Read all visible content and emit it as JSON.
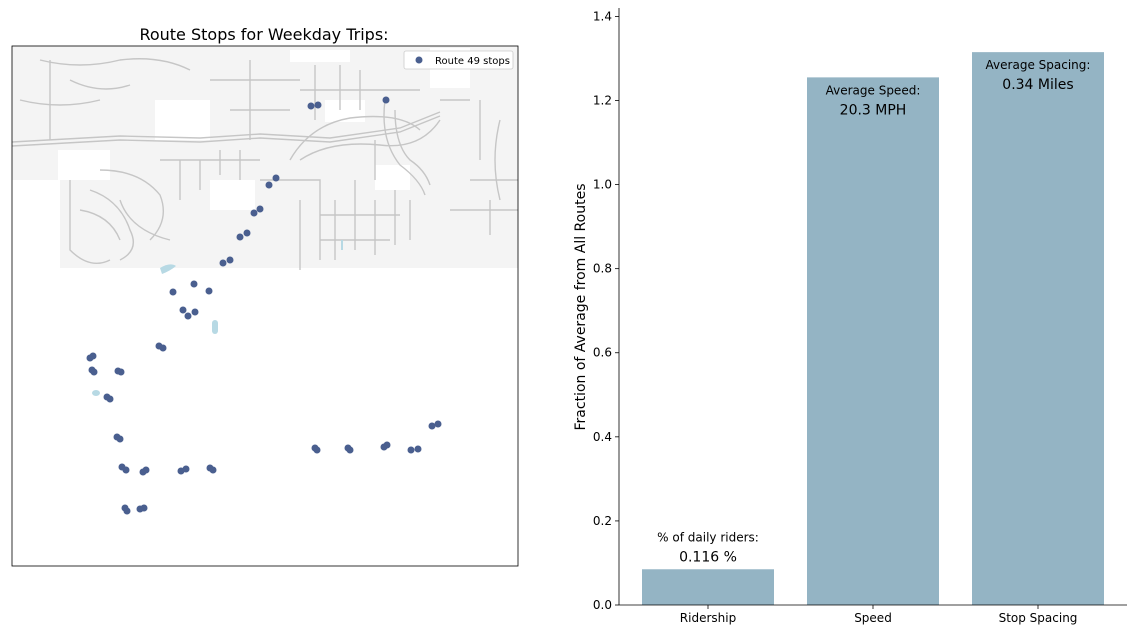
{
  "map_panel": {
    "title": "Route Stops for Weekday Trips:",
    "legend_label": "Route 49 stops",
    "stop_color": "#4a5f8f",
    "water_color": "#b7d9e4",
    "road_color": "#c6c6c6",
    "area_color": "#f4f4f4"
  },
  "chart_data": {
    "type": "bar",
    "categories": [
      "Ridership",
      "Speed",
      "Stop Spacing"
    ],
    "values": [
      0.085,
      1.255,
      1.315
    ],
    "ylabel": "Fraction of Average from All Routes",
    "ylim": [
      0,
      1.42
    ],
    "yticks": [
      0.0,
      0.2,
      0.4,
      0.6,
      0.8,
      1.0,
      1.2,
      1.4
    ],
    "yticklabels": [
      "0.0",
      "0.2",
      "0.4",
      "0.6",
      "0.8",
      "1.0",
      "1.2",
      "1.4"
    ],
    "bar_color": "#94b4c4",
    "annotations": [
      {
        "line1": "% of daily riders:",
        "line2": "0.116 %"
      },
      {
        "line1": "Average Speed:",
        "line2": "20.3 MPH"
      },
      {
        "line1": "Average Spacing:",
        "line2": "0.34 Miles"
      }
    ]
  }
}
